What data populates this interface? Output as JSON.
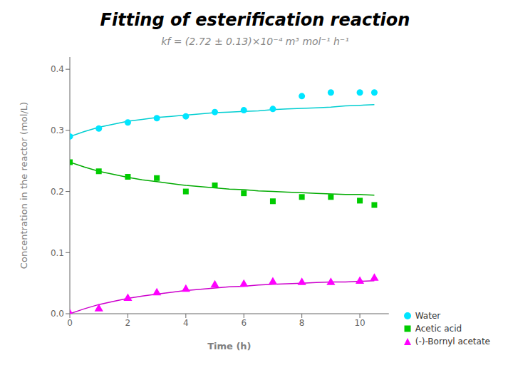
{
  "chart_data": {
    "type": "scatter",
    "title": "Fitting of esterification reaction",
    "subtitle": "kf = (2.72 ± 0.13)×10⁻⁴ m³ mol⁻¹ h⁻¹",
    "x_label": "Time (h)",
    "y_label": "Concentration in the reactor (mol/L)",
    "xlim": [
      0,
      11
    ],
    "ylim": [
      0.0,
      0.42
    ],
    "xticks": [
      0,
      2,
      4,
      6,
      8,
      10
    ],
    "yticks": [
      {
        "value": 0.0,
        "label": "0.0"
      },
      0.1,
      0.2,
      0.3,
      0.4
    ],
    "grid": false,
    "legend": "right",
    "series": [
      {
        "type": "line",
        "color": "#00CED1",
        "x": [
          0,
          0.5,
          1,
          1.5,
          2,
          2.5,
          3,
          3.5,
          4,
          4.5,
          5,
          5.5,
          6,
          6.5,
          7,
          7.5,
          8,
          8.5,
          9,
          9.5,
          10,
          10.5
        ],
        "values": [
          0.29,
          0.298,
          0.305,
          0.31,
          0.315,
          0.318,
          0.321,
          0.323,
          0.325,
          0.327,
          0.329,
          0.33,
          0.331,
          0.332,
          0.334,
          0.335,
          0.336,
          0.337,
          0.338,
          0.34,
          0.341,
          0.342
        ]
      },
      {
        "type": "scatter",
        "name": "Water",
        "color": "#00E5FF",
        "marker": "circle",
        "x": [
          0,
          1,
          2,
          3,
          4,
          5,
          6,
          7,
          8,
          9,
          10,
          10.5
        ],
        "values": [
          0.29,
          0.303,
          0.313,
          0.32,
          0.323,
          0.33,
          0.333,
          0.335,
          0.356,
          0.362,
          0.362,
          0.362
        ]
      },
      {
        "type": "line",
        "color": "#00AA00",
        "x": [
          0,
          0.5,
          1,
          1.5,
          2,
          2.5,
          3,
          3.5,
          4,
          4.5,
          5,
          5.5,
          6,
          6.5,
          7,
          7.5,
          8,
          8.5,
          9,
          9.5,
          10,
          10.5
        ],
        "values": [
          0.248,
          0.24,
          0.233,
          0.228,
          0.223,
          0.219,
          0.216,
          0.213,
          0.21,
          0.208,
          0.206,
          0.204,
          0.203,
          0.201,
          0.2,
          0.199,
          0.198,
          0.197,
          0.196,
          0.195,
          0.195,
          0.194
        ]
      },
      {
        "type": "scatter",
        "name": "Acetic acid",
        "color": "#00CC00",
        "marker": "square",
        "x": [
          0,
          1,
          2,
          3,
          4,
          5,
          6,
          7,
          8,
          9,
          10,
          10.5
        ],
        "values": [
          0.248,
          0.233,
          0.224,
          0.222,
          0.2,
          0.21,
          0.197,
          0.184,
          0.191,
          0.191,
          0.185,
          0.178
        ]
      },
      {
        "type": "line",
        "color": "#CC00CC",
        "x": [
          0,
          0.5,
          1,
          1.5,
          2,
          2.5,
          3,
          3.5,
          4,
          4.5,
          5,
          5.5,
          6,
          6.5,
          7,
          7.5,
          8,
          8.5,
          9,
          9.5,
          10,
          10.5
        ],
        "values": [
          0.0,
          0.008,
          0.015,
          0.02,
          0.025,
          0.029,
          0.032,
          0.035,
          0.038,
          0.04,
          0.042,
          0.044,
          0.045,
          0.047,
          0.048,
          0.049,
          0.05,
          0.051,
          0.052,
          0.052,
          0.053,
          0.054
        ]
      },
      {
        "type": "scatter",
        "name": "(-)-Bornyl acetate",
        "color": "#FF00FF",
        "marker": "triangle",
        "x": [
          0,
          1,
          2,
          3,
          4,
          5,
          6,
          7,
          8,
          9,
          10,
          10.5
        ],
        "values": [
          0.0,
          0.008,
          0.025,
          0.034,
          0.04,
          0.047,
          0.048,
          0.052,
          0.051,
          0.051,
          0.053,
          0.058
        ]
      }
    ]
  }
}
